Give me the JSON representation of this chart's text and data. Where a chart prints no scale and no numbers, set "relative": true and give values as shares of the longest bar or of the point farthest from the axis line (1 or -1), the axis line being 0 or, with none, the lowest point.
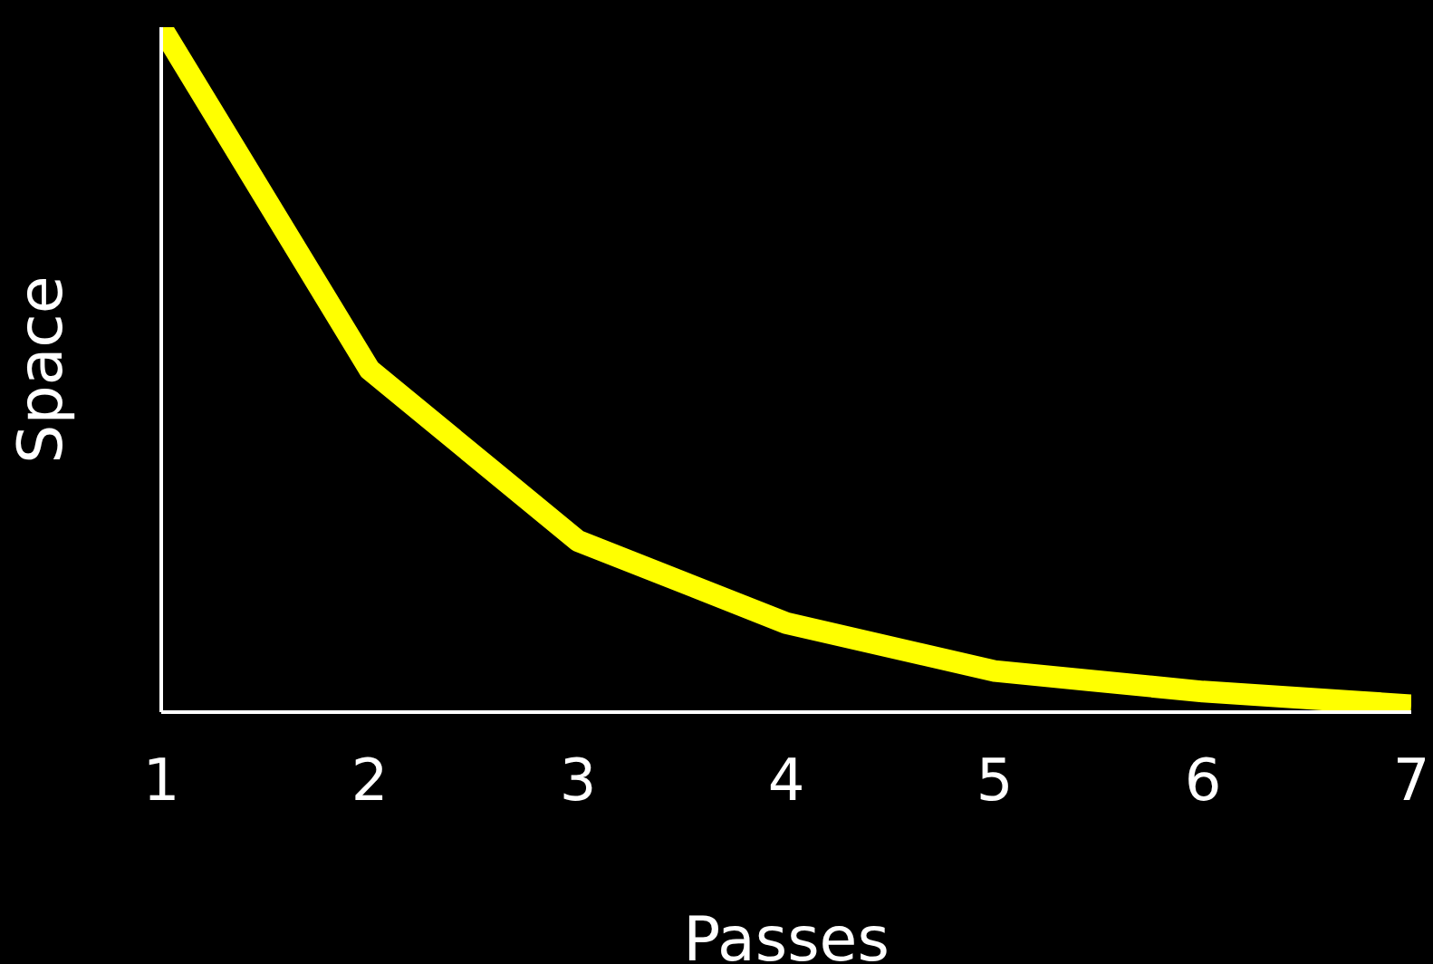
{
  "chart_data": {
    "type": "line",
    "xlabel": "Passes",
    "ylabel": "Space",
    "relative": true,
    "x": [
      1,
      2,
      3,
      4,
      5,
      6,
      7
    ],
    "xlim": [
      1,
      7
    ],
    "xticks": [
      1,
      2,
      3,
      4,
      5,
      6,
      7
    ],
    "series": [
      {
        "color": "#ffff00",
        "values": [
          1,
          0.5,
          0.25,
          0.13,
          0.06,
          0.03,
          0.01
        ]
      }
    ],
    "grid": false,
    "legend": false,
    "marker": "none",
    "line_style": "solid"
  }
}
